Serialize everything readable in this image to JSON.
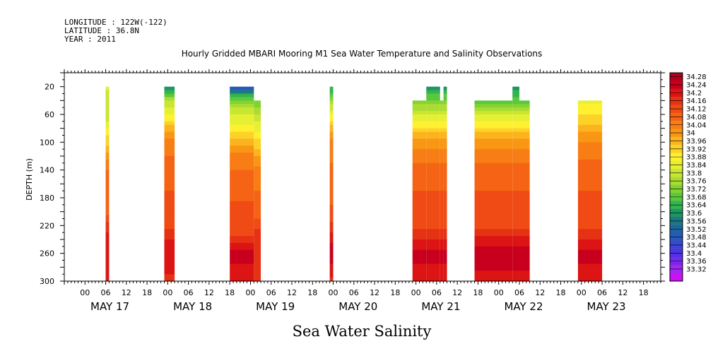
{
  "header": {
    "longitude": "LONGITUDE : 122W(-122)",
    "latitude": "LATITUDE : 36.8N",
    "year": "YEAR : 2011"
  },
  "chart_data": {
    "type": "heatmap",
    "title": "Hourly Gridded MBARI Mooring M1 Sea Water Temperature and Salinity Observations",
    "xlabel": "Sea Water Salinity",
    "ylabel": "DEPTH (m)",
    "y_axis": {
      "range": [
        0,
        300
      ],
      "inverted": true,
      "ticks": [
        20,
        60,
        100,
        140,
        180,
        220,
        260,
        300
      ]
    },
    "x_axis": {
      "start": "2011-05-16T18:00",
      "end": "2011-05-23T23:00",
      "hour_ticks": [
        "00",
        "06",
        "12",
        "18",
        "00",
        "06",
        "12",
        "18",
        "00",
        "06",
        "12",
        "18",
        "00",
        "06",
        "12",
        "18",
        "00",
        "06",
        "12",
        "18",
        "00",
        "06",
        "12",
        "18",
        "00",
        "06",
        "12",
        "18"
      ],
      "day_labels": [
        "MAY 17",
        "MAY 18",
        "MAY 19",
        "MAY 20",
        "MAY 21",
        "MAY 22",
        "MAY 23"
      ]
    },
    "colorbar": {
      "labels": [
        "34.28",
        "34.24",
        "34.2",
        "34.16",
        "34.12",
        "34.08",
        "34.04",
        "34",
        "33.96",
        "33.92",
        "33.88",
        "33.84",
        "33.8",
        "33.76",
        "33.72",
        "33.68",
        "33.64",
        "33.6",
        "33.56",
        "33.52",
        "33.48",
        "33.44",
        "33.4",
        "33.36",
        "33.32"
      ],
      "colors": [
        "#b4001e",
        "#c8001e",
        "#dc1414",
        "#e63214",
        "#f04b14",
        "#f56414",
        "#f77d14",
        "#f99614",
        "#fbb41e",
        "#fdd228",
        "#fff030",
        "#e6f032",
        "#c8e632",
        "#aadc32",
        "#82d232",
        "#5ac83c",
        "#32b450",
        "#1e9664",
        "#1e7882",
        "#1e64a0",
        "#285abe",
        "#3c46d2",
        "#5032e6",
        "#7828ec",
        "#a028f0",
        "#c814f0"
      ]
    },
    "segments": [
      {
        "start": "2011-05-17T06:00",
        "end": "2011-05-17T07:00",
        "top_depth": 20,
        "profile": [
          [
            20,
            33.84
          ],
          [
            60,
            33.8
          ],
          [
            100,
            33.94
          ],
          [
            140,
            34.06
          ],
          [
            200,
            34.08
          ],
          [
            240,
            34.2
          ],
          [
            300,
            34.2
          ]
        ]
      },
      {
        "start": "2011-05-17T23:00",
        "end": "2011-05-18T02:00",
        "top_depth": 20,
        "profile": [
          [
            20,
            33.6
          ],
          [
            40,
            33.8
          ],
          [
            70,
            33.92
          ],
          [
            100,
            34.04
          ],
          [
            140,
            34.08
          ],
          [
            220,
            34.12
          ],
          [
            250,
            34.2
          ],
          [
            300,
            34.16
          ]
        ]
      },
      {
        "start": "2011-05-18T18:00",
        "end": "2011-05-19T01:00",
        "top_depth": 20,
        "profile": [
          [
            20,
            33.46
          ],
          [
            30,
            33.66
          ],
          [
            50,
            33.8
          ],
          [
            90,
            33.92
          ],
          [
            120,
            34.04
          ],
          [
            160,
            34.08
          ],
          [
            230,
            34.12
          ],
          [
            260,
            34.22
          ],
          [
            300,
            34.18
          ]
        ]
      },
      {
        "start": "2011-05-19T01:00",
        "end": "2011-05-19T03:00",
        "top_depth": 40,
        "profile": [
          [
            40,
            33.72
          ],
          [
            60,
            33.8
          ],
          [
            100,
            33.92
          ],
          [
            140,
            34.04
          ],
          [
            200,
            34.08
          ],
          [
            240,
            34.16
          ],
          [
            300,
            34.16
          ]
        ]
      },
      {
        "start": "2011-05-19T23:00",
        "end": "2011-05-20T00:00",
        "top_depth": 20,
        "profile": [
          [
            20,
            33.64
          ],
          [
            60,
            33.88
          ],
          [
            100,
            34.04
          ],
          [
            200,
            34.1
          ],
          [
            260,
            34.24
          ],
          [
            300,
            34.16
          ]
        ]
      },
      {
        "start": "2011-05-20T23:00",
        "end": "2011-05-21T03:00",
        "top_depth": 40,
        "profile": [
          [
            40,
            33.72
          ],
          [
            60,
            33.84
          ],
          [
            100,
            34
          ],
          [
            140,
            34.08
          ],
          [
            220,
            34.12
          ],
          [
            260,
            34.22
          ],
          [
            300,
            34.18
          ]
        ]
      },
      {
        "start": "2011-05-21T03:00",
        "end": "2011-05-21T07:00",
        "top_depth": 20,
        "profile": [
          [
            20,
            33.64
          ],
          [
            40,
            33.72
          ],
          [
            60,
            33.84
          ],
          [
            100,
            34
          ],
          [
            140,
            34.08
          ],
          [
            220,
            34.12
          ],
          [
            260,
            34.22
          ],
          [
            300,
            34.18
          ]
        ]
      },
      {
        "start": "2011-05-21T07:00",
        "end": "2011-05-21T08:00",
        "top_depth": 40,
        "profile": [
          [
            40,
            33.72
          ],
          [
            60,
            33.84
          ],
          [
            100,
            34
          ],
          [
            140,
            34.08
          ],
          [
            220,
            34.12
          ],
          [
            260,
            34.22
          ],
          [
            300,
            34.18
          ]
        ]
      },
      {
        "start": "2011-05-21T08:00",
        "end": "2011-05-21T09:00",
        "top_depth": 20,
        "profile": [
          [
            20,
            33.64
          ],
          [
            40,
            33.72
          ],
          [
            60,
            33.84
          ],
          [
            100,
            34
          ],
          [
            140,
            34.08
          ],
          [
            220,
            34.12
          ],
          [
            260,
            34.22
          ],
          [
            300,
            34.18
          ]
        ]
      },
      {
        "start": "2011-05-21T17:00",
        "end": "2011-05-22T04:00",
        "top_depth": 40,
        "profile": [
          [
            40,
            33.7
          ],
          [
            60,
            33.84
          ],
          [
            100,
            34
          ],
          [
            140,
            34.08
          ],
          [
            220,
            34.12
          ],
          [
            260,
            34.24
          ],
          [
            300,
            34.18
          ]
        ]
      },
      {
        "start": "2011-05-22T04:00",
        "end": "2011-05-22T06:00",
        "top_depth": 20,
        "profile": [
          [
            20,
            33.64
          ],
          [
            40,
            33.7
          ],
          [
            60,
            33.84
          ],
          [
            100,
            34
          ],
          [
            140,
            34.08
          ],
          [
            220,
            34.12
          ],
          [
            260,
            34.24
          ],
          [
            300,
            34.18
          ]
        ]
      },
      {
        "start": "2011-05-22T06:00",
        "end": "2011-05-22T09:00",
        "top_depth": 40,
        "profile": [
          [
            40,
            33.7
          ],
          [
            60,
            33.84
          ],
          [
            100,
            34
          ],
          [
            140,
            34.08
          ],
          [
            220,
            34.12
          ],
          [
            260,
            34.24
          ],
          [
            300,
            34.18
          ]
        ]
      },
      {
        "start": "2011-05-22T23:00",
        "end": "2011-05-23T06:00",
        "top_depth": 40,
        "profile": [
          [
            40,
            33.86
          ],
          [
            70,
            33.94
          ],
          [
            100,
            34.02
          ],
          [
            140,
            34.08
          ],
          [
            220,
            34.12
          ],
          [
            260,
            34.22
          ],
          [
            300,
            34.18
          ]
        ]
      }
    ]
  }
}
